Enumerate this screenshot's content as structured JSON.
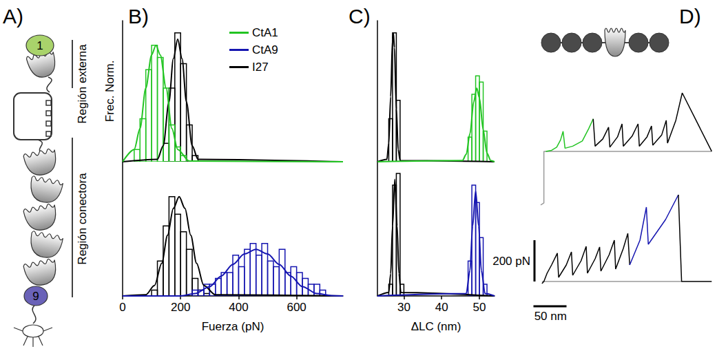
{
  "panel_labels": [
    "A)",
    "B)",
    "C)",
    "D)"
  ],
  "diagram_A": {
    "domains": [
      {
        "label": "1",
        "color": "#a9d36b"
      },
      {
        "label": "9",
        "color": "#6a62b8"
      }
    ],
    "regions": [
      "Región externa",
      "Región conectora"
    ]
  },
  "chart_data": [
    {
      "type": "histogram",
      "xlabel": "Fuerza (pN)",
      "ylabel": "Frec. Norm.",
      "xlim": [
        0,
        760
      ],
      "xticks": [
        0,
        200,
        400,
        600
      ],
      "ylim": [
        0,
        1.15
      ],
      "tick_labels": "x",
      "legend": "top",
      "subplots": [
        {
          "series": [
            {
              "name": "CtA1",
              "color": "#22c422",
              "bins": [
                40,
                60,
                80,
                100,
                120,
                140,
                160,
                180,
                200,
                220
              ],
              "counts": [
                0.1,
                0.35,
                0.75,
                0.95,
                0.85,
                0.6,
                0.3,
                0.12,
                0.05
              ],
              "fit_x": [
                0,
                40,
                60,
                80,
                100,
                115,
                130,
                150,
                170,
                190,
                230,
                760
              ],
              "fit_y": [
                0,
                0.1,
                0.27,
                0.6,
                0.87,
                0.95,
                0.87,
                0.6,
                0.27,
                0.1,
                0.005,
                0
              ]
            },
            {
              "name": "I27",
              "color": "#000000",
              "bins": [
                140,
                160,
                180,
                200,
                220,
                240,
                260
              ],
              "counts": [
                0.15,
                0.6,
                1.05,
                0.8,
                0.3,
                0.05
              ],
              "fit_x": [
                0,
                120,
                140,
                160,
                175,
                190,
                205,
                220,
                240,
                260,
                760
              ],
              "fit_y": [
                0,
                0.02,
                0.13,
                0.49,
                0.84,
                1.0,
                0.84,
                0.49,
                0.13,
                0.02,
                0
              ]
            }
          ]
        },
        {
          "series": [
            {
              "name": "CtA9",
              "color": "#1515b0",
              "bins": [
                240,
                260,
                280,
                300,
                320,
                340,
                360,
                380,
                400,
                420,
                440,
                460,
                480,
                500,
                520,
                540,
                560,
                580,
                600,
                620,
                640,
                660,
                680,
                700
              ],
              "counts": [
                0.05,
                0.05,
                0.1,
                0.1,
                0.15,
                0.2,
                0.2,
                0.35,
                0.25,
                0.4,
                0.45,
                0.35,
                0.45,
                0.3,
                0.25,
                0.4,
                0.2,
                0.25,
                0.2,
                0.15,
                0.1,
                0.1,
                0.05
              ],
              "fit_x": [
                0,
                200,
                250,
                300,
                340,
                380,
                420,
                460,
                500,
                540,
                580,
                620,
                670,
                720,
                760
              ],
              "fit_y": [
                0,
                0,
                0.02,
                0.08,
                0.17,
                0.27,
                0.36,
                0.4,
                0.36,
                0.27,
                0.17,
                0.08,
                0.02,
                0.003,
                0
              ]
            },
            {
              "name": "I27",
              "color": "#000000",
              "bins": [
                100,
                120,
                140,
                160,
                180,
                200,
                220,
                240,
                260,
                280,
                300
              ],
              "counts": [
                0.05,
                0.3,
                0.6,
                0.85,
                0.7,
                0.55,
                0.4,
                0.15,
                0.05,
                0.02
              ],
              "fit_x": [
                0,
                80,
                110,
                135,
                155,
                175,
                195,
                215,
                235,
                255,
                280,
                320,
                760
              ],
              "fit_y": [
                0,
                0.01,
                0.09,
                0.28,
                0.52,
                0.75,
                0.85,
                0.75,
                0.52,
                0.28,
                0.09,
                0.01,
                0
              ]
            }
          ]
        }
      ]
    },
    {
      "type": "histogram",
      "xlabel": "ΔLC (nm)",
      "xlim": [
        23,
        54
      ],
      "xticks": [
        30,
        40,
        50
      ],
      "ylim": [
        0,
        1.15
      ],
      "tick_labels": "x",
      "subplots": [
        {
          "series": [
            {
              "name": "CtA1",
              "color": "#22c422",
              "bins": [
                47,
                48,
                49,
                50,
                51,
                52
              ],
              "counts": [
                0.2,
                0.55,
                0.7,
                0.65,
                0.25
              ],
              "fit_x": [
                23,
                45.5,
                46.5,
                47.5,
                48.5,
                49.3,
                50,
                51,
                52,
                53,
                54
              ],
              "fit_y": [
                0,
                0.01,
                0.06,
                0.23,
                0.49,
                0.6,
                0.52,
                0.26,
                0.07,
                0.01,
                0
              ]
            },
            {
              "name": "I27",
              "color": "#000000",
              "bins": [
                26,
                27,
                28,
                29
              ],
              "counts": [
                0.35,
                1.05,
                0.5
              ],
              "fit_x": [
                23,
                25.5,
                26,
                26.5,
                27,
                27.2,
                27.5,
                28,
                28.5,
                29,
                54
              ],
              "fit_y": [
                0,
                0.02,
                0.15,
                0.53,
                1.0,
                1.05,
                0.93,
                0.43,
                0.1,
                0.01,
                0
              ]
            }
          ]
        },
        {
          "series": [
            {
              "name": "CtA9",
              "color": "#1515b0",
              "bins": [
                47,
                48,
                49,
                50,
                51,
                52
              ],
              "counts": [
                0.3,
                0.95,
                0.8,
                0.5,
                0.1
              ],
              "fit_x": [
                23,
                46.5,
                47.5,
                48.2,
                49,
                49.8,
                50.5,
                51.5,
                54
              ],
              "fit_y": [
                0,
                0.02,
                0.22,
                0.6,
                0.9,
                0.6,
                0.22,
                0.02,
                0
              ]
            },
            {
              "name": "I27",
              "color": "#000000",
              "bins": [
                26,
                27,
                28,
                29,
                30
              ],
              "counts": [
                0.1,
                0.95,
                1.05,
                0.1
              ],
              "fit_x": [
                23,
                26,
                26.5,
                27,
                27.6,
                28.2,
                28.7,
                29.2,
                54
              ],
              "fit_y": [
                0,
                0.03,
                0.19,
                0.6,
                1.0,
                0.6,
                0.19,
                0.03,
                0
              ]
            }
          ]
        }
      ]
    },
    {
      "type": "line",
      "tick_labels": false,
      "scale_bars": [
        {
          "axis": "y",
          "value": 200,
          "label": "200 pN"
        },
        {
          "axis": "x",
          "value": 50,
          "label": "50 nm"
        }
      ],
      "subplots": [
        {
          "series": [
            {
              "color": "#9a9a9a",
              "x": [
                -5,
                0,
                0,
                262
              ],
              "values": [
                -260,
                -250,
                0,
                0
              ]
            },
            {
              "color": "#22c422",
              "x": [
                3,
                12,
                20,
                26,
                30,
                33,
                45,
                60,
                70,
                77
              ],
              "values": [
                0,
                5,
                20,
                55,
                97,
                15,
                25,
                50,
                110,
                157
              ]
            },
            {
              "color": "#000000",
              "x": [
                77,
                80,
                92,
                101,
                103,
                115,
                122,
                124,
                138,
                147,
                149,
                161,
                168,
                170,
                184,
                191,
                193,
                206,
                216,
                262
              ],
              "values": [
                157,
                25,
                60,
                117,
                20,
                70,
                133,
                25,
                75,
                133,
                25,
                70,
                123,
                30,
                80,
                150,
                40,
                150,
                283,
                0
              ]
            }
          ]
        },
        {
          "series": [
            {
              "color": "#9a9a9a",
              "x": [
                -3,
                215
              ],
              "values": [
                0,
                0
              ]
            },
            {
              "color": "#000000",
              "x": [
                -3,
                0,
                5,
                12,
                21,
                23,
                35,
                43,
                45,
                58,
                66,
                68,
                80,
                87,
                89,
                102,
                110,
                112,
                124,
                131,
                134
              ],
              "values": [
                -10,
                0,
                40,
                80,
                137,
                20,
                80,
                143,
                30,
                100,
                170,
                40,
                110,
                167,
                50,
                130,
                200,
                60,
                160,
                233,
                80
              ]
            },
            {
              "color": "#1515b0",
              "x": [
                134,
                150,
                160,
                163,
                190,
                210
              ],
              "values": [
                80,
                200,
                360,
                180,
                300,
                420
              ]
            },
            {
              "color": "#000000",
              "x": [
                210,
                215,
                262
              ],
              "values": [
                420,
                0,
                0
              ]
            }
          ]
        }
      ]
    }
  ]
}
